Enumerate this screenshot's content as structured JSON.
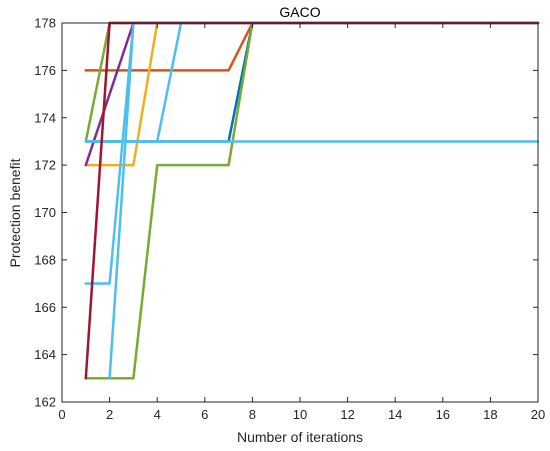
{
  "chart_data": {
    "type": "line",
    "title": "GACO",
    "xlabel": "Number of iterations",
    "ylabel": "Protection benefit",
    "xlim": [
      0,
      20
    ],
    "ylim": [
      162,
      178
    ],
    "xticks": [
      0,
      2,
      4,
      6,
      8,
      10,
      12,
      14,
      16,
      18,
      20
    ],
    "yticks": [
      162,
      164,
      166,
      168,
      170,
      172,
      174,
      176,
      178
    ],
    "grid": false,
    "legend": "none",
    "series": [
      {
        "color": "#0072BD",
        "x": [
          1,
          7,
          8,
          20
        ],
        "y": [
          173,
          173,
          178,
          178
        ]
      },
      {
        "color": "#D95319",
        "x": [
          1,
          7,
          8,
          20
        ],
        "y": [
          176,
          176,
          178,
          178
        ]
      },
      {
        "color": "#EDB120",
        "x": [
          1,
          3,
          4,
          20
        ],
        "y": [
          172,
          172,
          178,
          178
        ]
      },
      {
        "color": "#7E2F8E",
        "x": [
          1,
          3,
          20
        ],
        "y": [
          172,
          178,
          178
        ]
      },
      {
        "color": "#77AC30",
        "x": [
          1,
          3,
          4,
          7,
          8,
          20
        ],
        "y": [
          163,
          163,
          172,
          172,
          178,
          178
        ]
      },
      {
        "color": "#77AC30",
        "x": [
          1,
          2,
          20
        ],
        "y": [
          173,
          178,
          178
        ]
      },
      {
        "color": "#4DBEEE",
        "x": [
          1,
          2,
          3,
          20
        ],
        "y": [
          167,
          167,
          178,
          178
        ]
      },
      {
        "color": "#4DBEEE",
        "x": [
          1,
          4,
          5,
          20
        ],
        "y": [
          173,
          173,
          178,
          178
        ]
      },
      {
        "color": "#4DBEEE",
        "x": [
          1,
          20
        ],
        "y": [
          173,
          173
        ]
      },
      {
        "color": "#4DBEEE",
        "x": [
          2,
          3,
          20
        ],
        "y": [
          163,
          178,
          178
        ]
      },
      {
        "color": "#A2142F",
        "x": [
          1,
          2,
          20
        ],
        "y": [
          163,
          178,
          178
        ]
      }
    ]
  }
}
